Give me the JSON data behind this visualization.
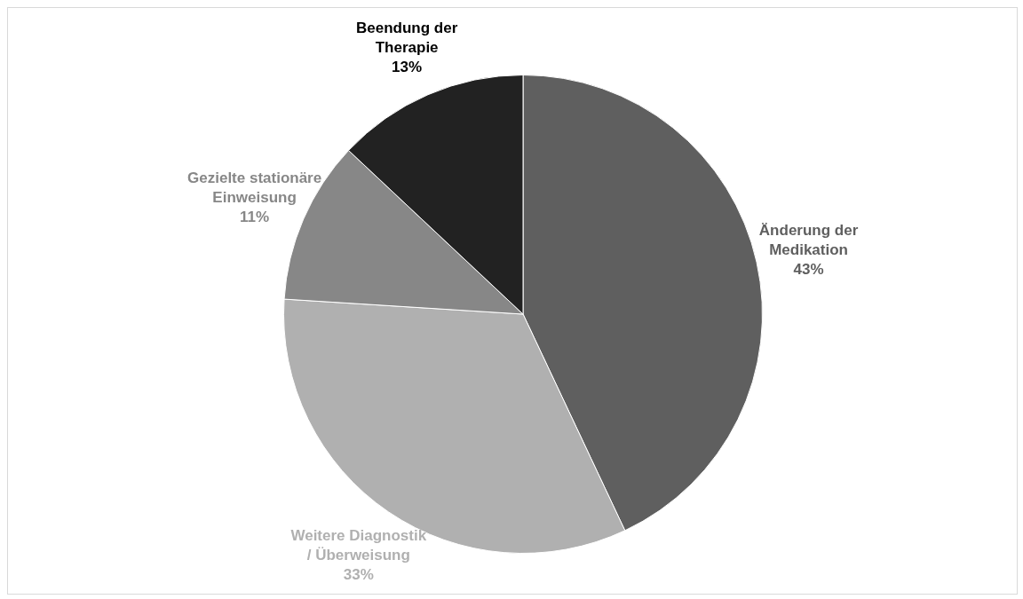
{
  "chart_data": {
    "type": "pie",
    "categories": [
      "Änderung der Medikation",
      "Weitere Diagnostik / Überweisung",
      "Gezielte stationäre Einweisung",
      "Beendung der Therapie"
    ],
    "values": [
      43,
      33,
      11,
      13
    ],
    "value_labels": [
      "43%",
      "33%",
      "11%",
      "13%"
    ],
    "colors": [
      "#5f5f5f",
      "#b0b0b0",
      "#878787",
      "#222222"
    ],
    "legend": false
  }
}
